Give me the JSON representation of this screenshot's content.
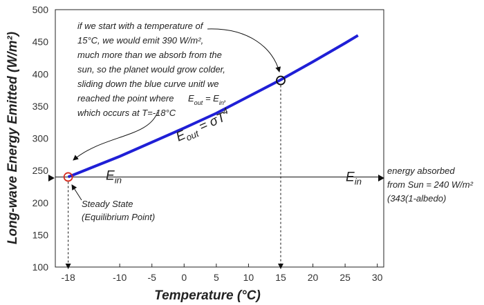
{
  "chart_data": {
    "type": "line",
    "x_label": "Temperature (°C)",
    "y_label": "Long-wave Energy Emitted (W/m²)",
    "x": [
      -18,
      -10,
      0,
      5,
      10,
      15,
      20,
      25,
      27
    ],
    "series": [
      {
        "color": "#1f1fd6",
        "values": [
          240,
          272,
          316,
          339,
          365,
          391,
          419,
          448,
          460
        ]
      }
    ],
    "xlim": [
      -20,
      31
    ],
    "ylim": [
      100,
      500
    ],
    "xticks": [
      -18,
      -10,
      -5,
      0,
      5,
      10,
      15,
      20,
      25,
      30
    ],
    "yticks": [
      100,
      150,
      200,
      250,
      300,
      350,
      400,
      450,
      500
    ],
    "grid": false,
    "curve_label": {
      "base": "E",
      "sub": "out",
      "rest": " = σT",
      "sup": "4"
    },
    "absorbed_line": {
      "value": 240,
      "base": "E",
      "sub": "in"
    },
    "points": [
      {
        "x": -18,
        "y": 240,
        "color": "#d62b1e"
      },
      {
        "x": 15,
        "y": 390,
        "color": "#111111"
      }
    ],
    "annotations": {
      "start_note": [
        "if we start with a temperature of",
        "15°C, we would emit 390 W/m²,",
        "much more than we absorb from the",
        "sun, so the planet would grow colder,",
        "sliding down the blue curve unitl we",
        "reached the point where",
        "which occurs at T=-18°C"
      ],
      "equality": {
        "e1": "E",
        "s1": "out",
        "mid": " = E",
        "s2": "in",
        "end": ","
      },
      "absorbed_note": [
        "energy absorbed",
        "from Sun = 240 W/m²",
        "(343(1-albedo)"
      ],
      "steady_note": [
        "Steady State",
        "(Equilibrium Point)"
      ]
    }
  }
}
